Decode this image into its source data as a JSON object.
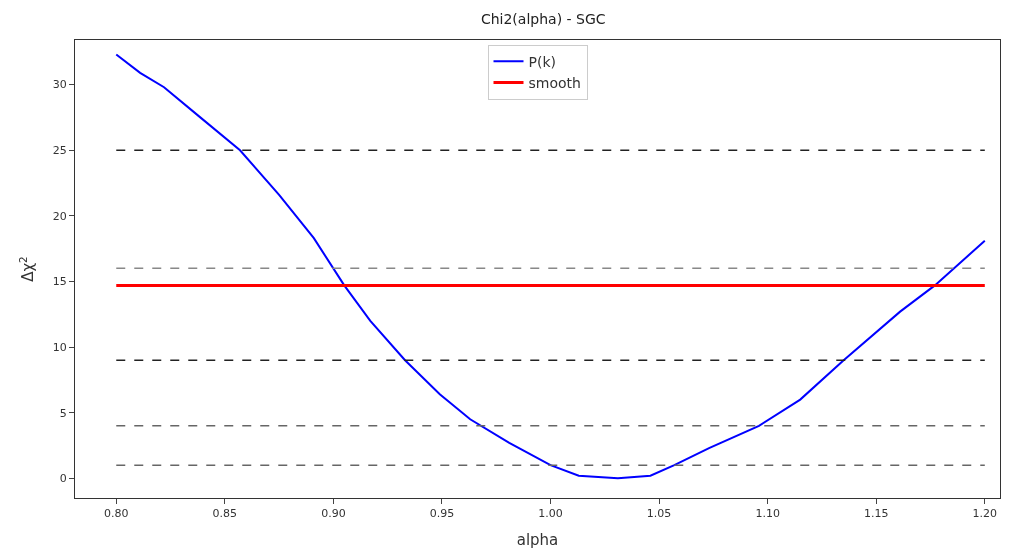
{
  "chart_data": {
    "type": "line",
    "title": "Chi2(alpha) - SGC",
    "xlabel": "alpha",
    "ylabel": "Δχ$^{2}$",
    "x": [
      0.8,
      0.811,
      0.822,
      0.838,
      0.857,
      0.875,
      0.891,
      0.905,
      0.917,
      0.933,
      0.949,
      0.963,
      0.981,
      1.0,
      1.013,
      1.031,
      1.046,
      1.057,
      1.073,
      1.096,
      1.115,
      1.135,
      1.161,
      1.177,
      1.2
    ],
    "series": [
      {
        "name": "P(k)",
        "color": "#0000ff",
        "values": [
          32.3,
          30.9,
          29.8,
          27.6,
          25.0,
          21.6,
          18.3,
          14.7,
          12.0,
          9.0,
          6.4,
          4.5,
          2.7,
          1.0,
          0.2,
          0.0,
          0.2,
          1.0,
          2.3,
          4.0,
          6.0,
          9.0,
          12.7,
          14.7,
          18.1
        ]
      },
      {
        "name": "smooth",
        "color": "#ff0000",
        "x": [
          0.8,
          1.2
        ],
        "values": [
          14.7,
          14.7
        ]
      }
    ],
    "ref_lines": [
      {
        "axis": "y",
        "value": 25,
        "color": "#222222",
        "line_style": "dashed"
      },
      {
        "axis": "y",
        "value": 16,
        "color": "#888888",
        "line_style": "dashed"
      },
      {
        "axis": "y",
        "value": 9,
        "color": "#222222",
        "line_style": "dashed"
      },
      {
        "axis": "y",
        "value": 4,
        "color": "#666666",
        "line_style": "dashed"
      },
      {
        "axis": "y",
        "value": 1,
        "color": "#666666",
        "line_style": "dashed"
      }
    ],
    "xlim": [
      0.781,
      1.207
    ],
    "xticks": [
      {
        "value": 0.8,
        "label": "0.80"
      },
      0.85,
      {
        "value": 0.9,
        "label": "0.90"
      },
      0.95,
      {
        "value": 1.0,
        "label": "1.00"
      },
      1.05,
      {
        "value": 1.1,
        "label": "1.10"
      },
      1.15,
      {
        "value": 1.2,
        "label": "1.20"
      }
    ],
    "ylim": [
      -1.5,
      33.4
    ],
    "yticks": [
      0,
      5,
      10,
      15,
      20,
      25,
      30
    ],
    "legend": "top",
    "line_style": "solid",
    "marker": "none"
  }
}
